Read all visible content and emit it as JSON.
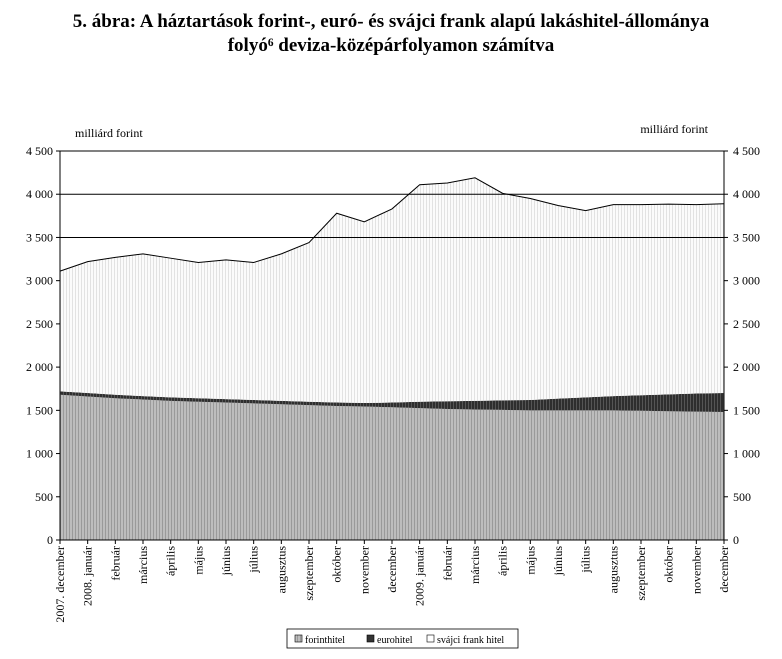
{
  "title_line1": "5. ábra: A háztartások forint-, euró- és svájci frank alapú lakáshitel-állománya",
  "title_line2": "folyó⁶ deviza-középárfolyamon számítva",
  "chart_data": {
    "type": "area",
    "stacked": true,
    "unit_left": "milliárd forint",
    "unit_right": "milliárd forint",
    "ylim": [
      0,
      4500
    ],
    "yticks": [
      "0",
      "500",
      "1 000",
      "1 500",
      "2 000",
      "2 500",
      "3 000",
      "3 500",
      "4 000",
      "4 500"
    ],
    "gridlines": [
      3500,
      4000,
      4500
    ],
    "categories": [
      "2007. december",
      "2008. január",
      "február",
      "március",
      "április",
      "május",
      "június",
      "július",
      "augusztus",
      "szeptember",
      "október",
      "november",
      "december",
      "2009. január",
      "február",
      "március",
      "április",
      "május",
      "június",
      "július",
      "augusztus",
      "szeptember",
      "október",
      "november",
      "december"
    ],
    "series": [
      {
        "name": "forinthitel",
        "color": "#b4b4b4",
        "values": [
          1680,
          1660,
          1640,
          1625,
          1610,
          1600,
          1590,
          1580,
          1570,
          1560,
          1550,
          1545,
          1535,
          1525,
          1515,
          1510,
          1505,
          1500,
          1500,
          1500,
          1500,
          1495,
          1490,
          1485,
          1480
        ]
      },
      {
        "name": "eurohitel",
        "color": "#333333",
        "values": [
          40,
          40,
          40,
          40,
          40,
          40,
          40,
          40,
          40,
          40,
          40,
          40,
          55,
          75,
          90,
          100,
          110,
          120,
          135,
          150,
          165,
          180,
          195,
          210,
          220
        ]
      },
      {
        "name": "svájci frank hitel",
        "color": "#f4f4f4",
        "values": [
          1390,
          1520,
          1590,
          1645,
          1610,
          1570,
          1610,
          1590,
          1700,
          1840,
          2190,
          2095,
          2240,
          2510,
          2525,
          2580,
          2395,
          2330,
          2235,
          2160,
          2215,
          2205,
          2200,
          2185,
          2190
        ]
      }
    ],
    "legend_position": "bottom"
  }
}
